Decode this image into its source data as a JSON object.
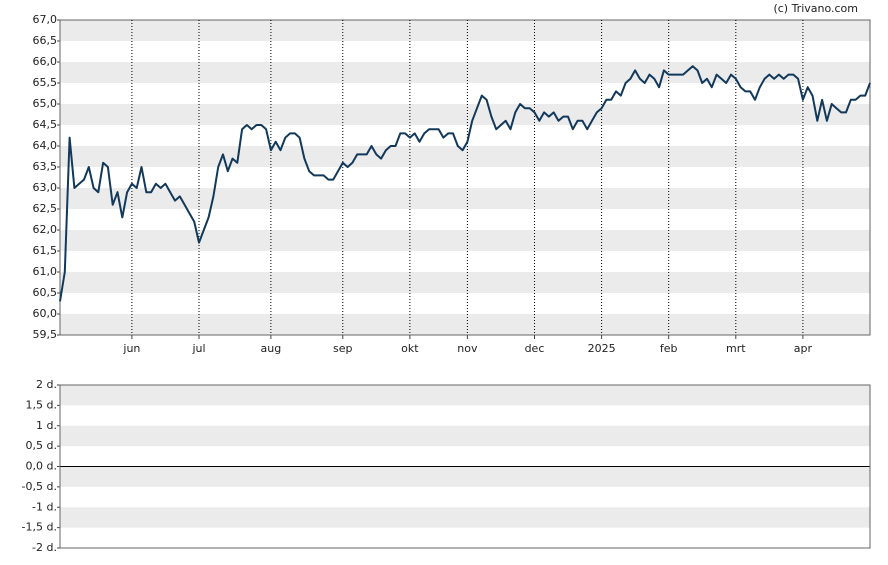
{
  "chart_data": [
    {
      "type": "line",
      "source": "(c) Trivano.com",
      "color": "#12395b",
      "grid": true,
      "categories": [
        null,
        null,
        null,
        null,
        null,
        null,
        null,
        null,
        null,
        null,
        null,
        null,
        null,
        null,
        null,
        "jun",
        null,
        null,
        null,
        null,
        null,
        null,
        null,
        null,
        null,
        null,
        null,
        null,
        null,
        "jul",
        null,
        null,
        null,
        null,
        null,
        null,
        null,
        null,
        null,
        null,
        null,
        null,
        null,
        null,
        "aug",
        null,
        null,
        null,
        null,
        null,
        null,
        null,
        null,
        null,
        null,
        null,
        null,
        null,
        null,
        "sep",
        null,
        null,
        null,
        null,
        null,
        null,
        null,
        null,
        null,
        null,
        null,
        null,
        null,
        "okt",
        null,
        null,
        null,
        null,
        null,
        null,
        null,
        null,
        null,
        null,
        null,
        "nov",
        null,
        null,
        null,
        null,
        null,
        null,
        null,
        null,
        null,
        null,
        null,
        null,
        null,
        "dec",
        null,
        null,
        null,
        null,
        null,
        null,
        null,
        null,
        null,
        null,
        null,
        null,
        null,
        "2025",
        null,
        null,
        null,
        null,
        null,
        null,
        null,
        null,
        null,
        null,
        null,
        null,
        null,
        "feb",
        null,
        null,
        null,
        null,
        null,
        null,
        null,
        null,
        null,
        null,
        null,
        null,
        null,
        "mrt",
        null,
        null,
        null,
        null,
        null,
        null,
        null,
        null,
        null,
        null,
        null,
        null,
        null,
        "apr",
        null,
        null,
        null,
        null,
        null,
        null,
        null,
        null,
        null,
        null,
        null,
        null,
        null,
        null
      ],
      "values": [
        60.3,
        61.0,
        64.2,
        63.0,
        63.1,
        63.2,
        63.5,
        63.0,
        62.9,
        63.6,
        63.5,
        62.6,
        62.9,
        62.3,
        62.9,
        63.1,
        63.0,
        63.5,
        62.9,
        62.9,
        63.1,
        63.0,
        63.1,
        62.9,
        62.7,
        62.8,
        62.6,
        62.4,
        62.2,
        61.7,
        62.0,
        62.3,
        62.8,
        63.5,
        63.8,
        63.4,
        63.7,
        63.6,
        64.4,
        64.5,
        64.4,
        64.5,
        64.5,
        64.4,
        63.9,
        64.1,
        63.9,
        64.2,
        64.3,
        64.3,
        64.2,
        63.7,
        63.4,
        63.3,
        63.3,
        63.3,
        63.2,
        63.2,
        63.4,
        63.6,
        63.5,
        63.6,
        63.8,
        63.8,
        63.8,
        64.0,
        63.8,
        63.7,
        63.9,
        64.0,
        64.0,
        64.3,
        64.3,
        64.2,
        64.3,
        64.1,
        64.3,
        64.4,
        64.4,
        64.4,
        64.2,
        64.3,
        64.3,
        64.0,
        63.9,
        64.1,
        64.6,
        64.9,
        65.2,
        65.1,
        64.7,
        64.4,
        64.5,
        64.6,
        64.4,
        64.8,
        65.0,
        64.9,
        64.9,
        64.8,
        64.6,
        64.8,
        64.7,
        64.8,
        64.6,
        64.7,
        64.7,
        64.4,
        64.6,
        64.6,
        64.4,
        64.6,
        64.8,
        64.9,
        65.1,
        65.1,
        65.3,
        65.2,
        65.5,
        65.6,
        65.8,
        65.6,
        65.5,
        65.7,
        65.6,
        65.4,
        65.8,
        65.7,
        65.7,
        65.7,
        65.7,
        65.8,
        65.9,
        65.8,
        65.5,
        65.6,
        65.4,
        65.7,
        65.6,
        65.5,
        65.7,
        65.6,
        65.4,
        65.3,
        65.3,
        65.1,
        65.4,
        65.6,
        65.7,
        65.6,
        65.7,
        65.6,
        65.7,
        65.7,
        65.6,
        65.1,
        65.4,
        65.2,
        64.6,
        65.1,
        64.6,
        65.0,
        64.9,
        64.8,
        64.8,
        65.1,
        65.1,
        65.2,
        65.2,
        65.5
      ],
      "ylim": [
        59.5,
        67
      ],
      "yticks": [
        {
          "value": 67,
          "label": "67,0"
        },
        {
          "value": 66.5,
          "label": "66,5"
        },
        {
          "value": 66,
          "label": "66,0"
        },
        {
          "value": 65.5,
          "label": "65,5"
        },
        {
          "value": 65,
          "label": "65,0"
        },
        {
          "value": 64.5,
          "label": "64,5"
        },
        {
          "value": 64,
          "label": "64,0"
        },
        {
          "value": 63.5,
          "label": "63,5"
        },
        {
          "value": 63,
          "label": "63,0"
        },
        {
          "value": 62.5,
          "label": "62,5"
        },
        {
          "value": 62,
          "label": "62,0"
        },
        {
          "value": 61.5,
          "label": "61,5"
        },
        {
          "value": 61,
          "label": "61,0"
        },
        {
          "value": 60.5,
          "label": "60,5"
        },
        {
          "value": 60,
          "label": "60,0"
        },
        {
          "value": 59.5,
          "label": "59,5"
        }
      ]
    },
    {
      "type": "bar",
      "values": [],
      "ylim": [
        -2,
        2
      ],
      "yticks": [
        {
          "value": 2,
          "label": "2 d."
        },
        {
          "value": 1.5,
          "label": "1,5 d."
        },
        {
          "value": 1,
          "label": "1 d."
        },
        {
          "value": 0.5,
          "label": "0,5 d."
        },
        {
          "value": 0,
          "label": "0,0 d."
        },
        {
          "value": -0.5,
          "label": "-0,5 d."
        },
        {
          "value": -1,
          "label": "-1 d."
        },
        {
          "value": -1.5,
          "label": "-1,5 d."
        },
        {
          "value": -2,
          "label": "-2 d."
        }
      ]
    }
  ]
}
